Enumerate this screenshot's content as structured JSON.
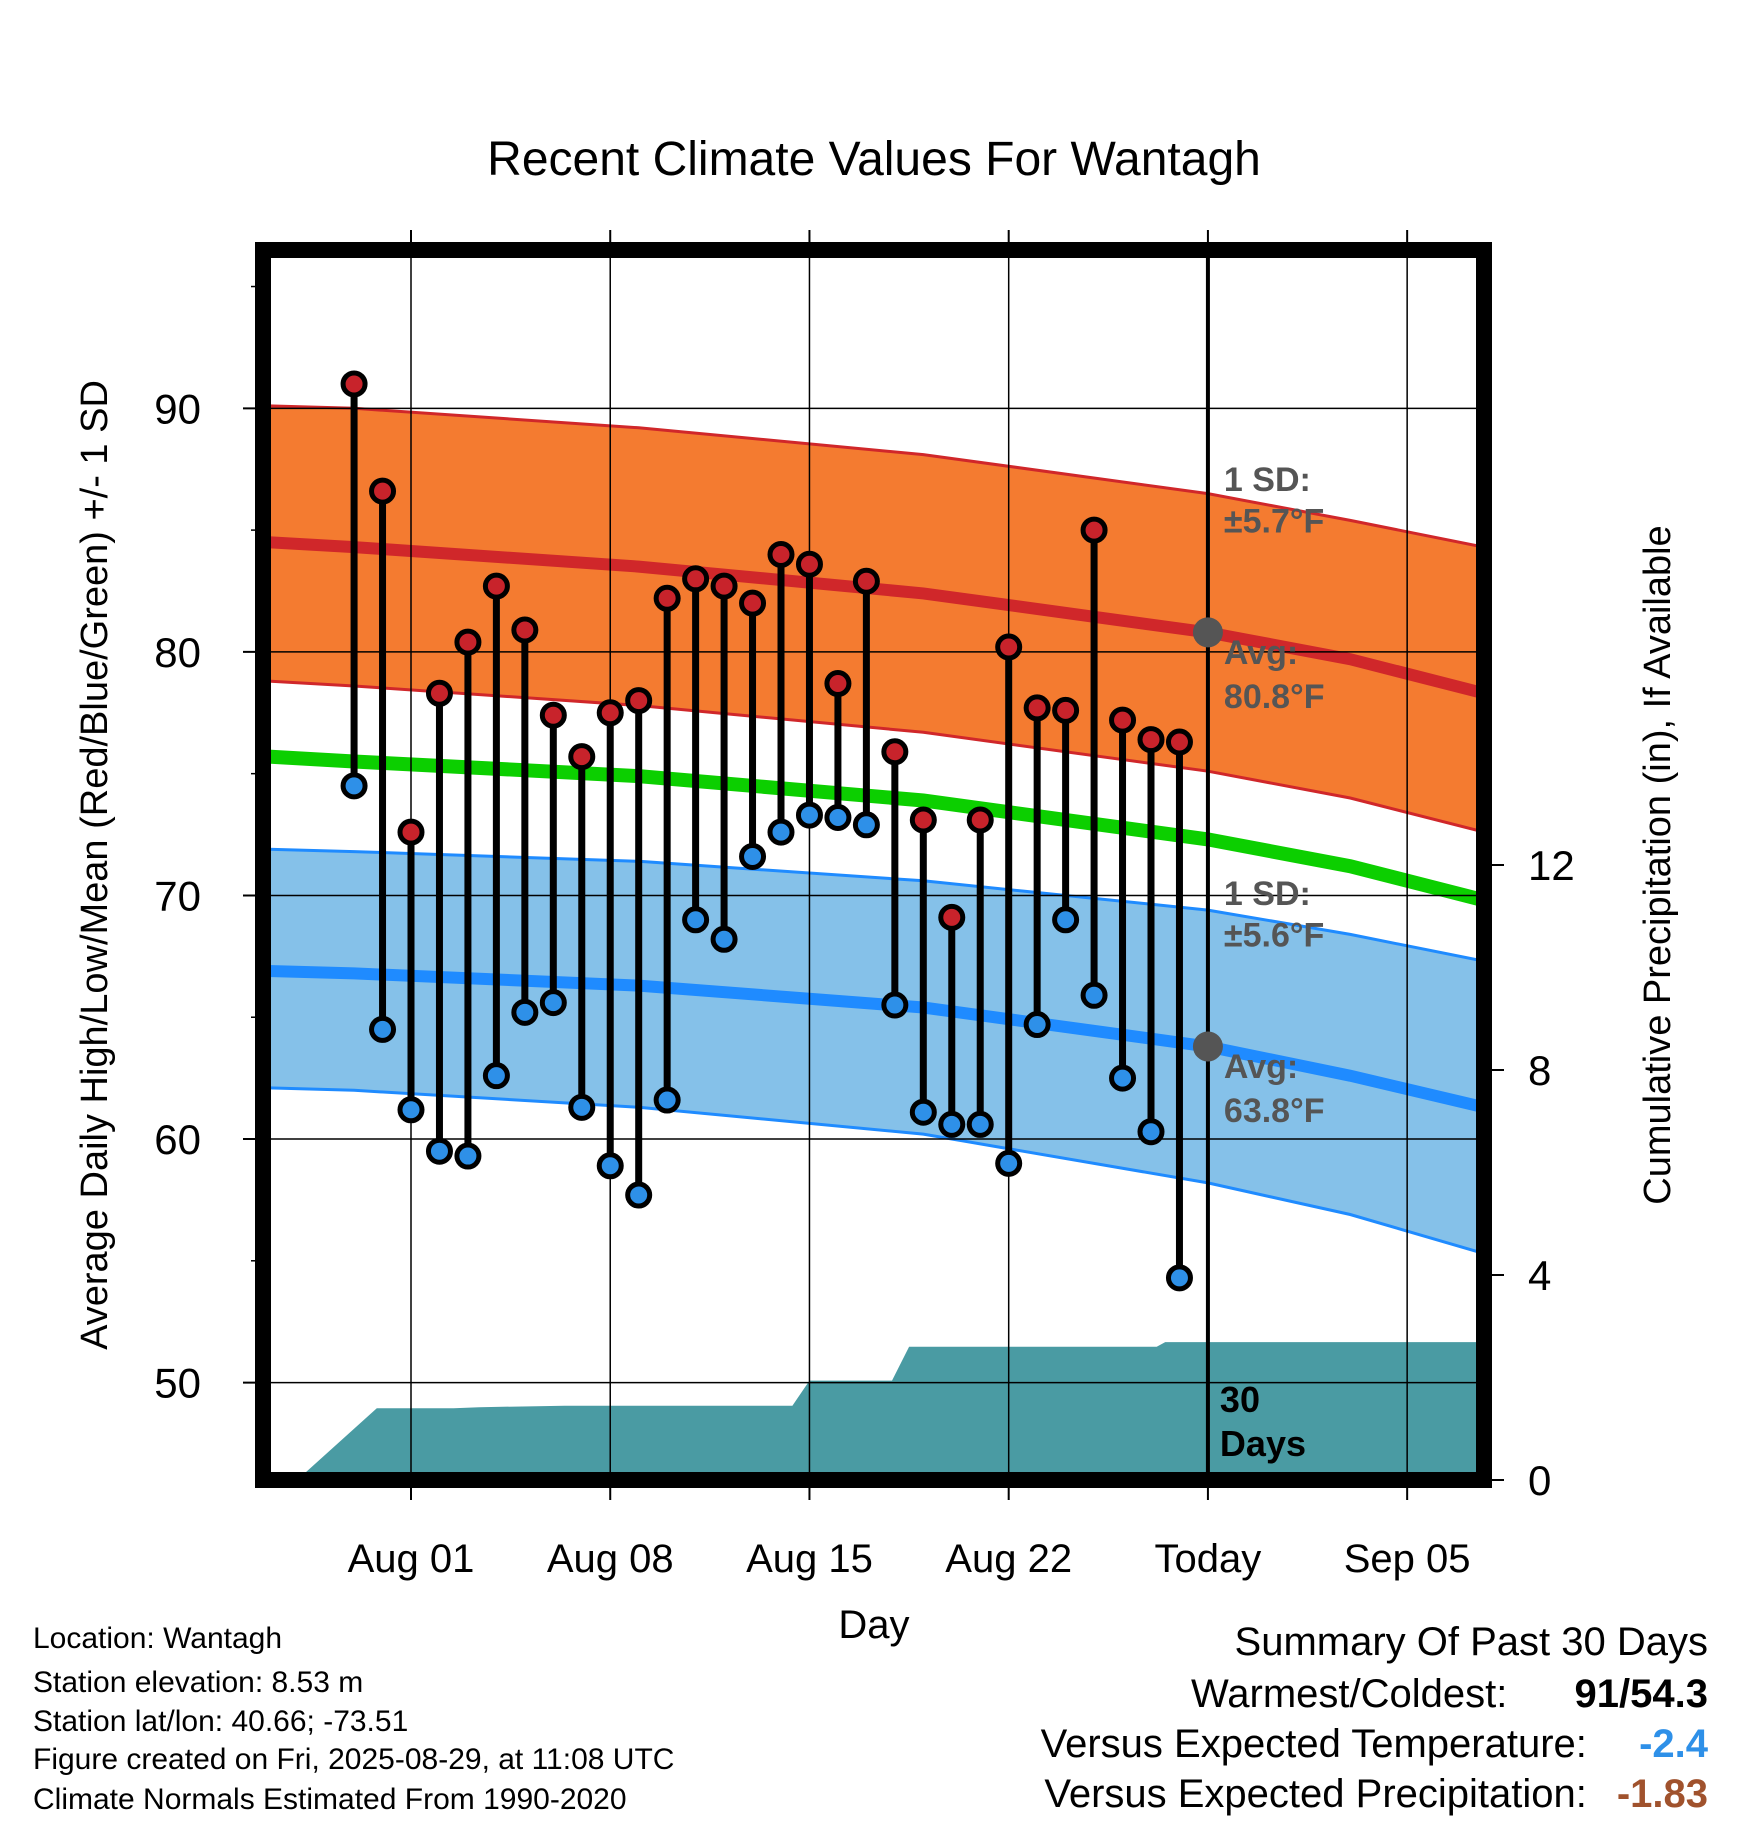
{
  "chart_data": {
    "type": "line",
    "title": "Recent Climate Values For Wantagh",
    "xlabel": "Day",
    "ylabel": "Average Daily High/Low/Mean (Red/Blue/Green) +/- 1 SD",
    "y2label": "Cumulative Precipitation (in), If Available",
    "x_tick_labels": [
      "Aug 01",
      "Aug 08",
      "Aug 15",
      "Aug 22",
      "Today",
      "Sep 05"
    ],
    "y_ticks": [
      50,
      60,
      70,
      80,
      90
    ],
    "y2_ticks": [
      0,
      4,
      8,
      12
    ],
    "ylim": [
      46,
      96.5
    ],
    "y2lim": [
      0,
      24
    ],
    "xlim_days": [
      -33.2,
      9.7
    ],
    "today_marker": 0,
    "x_days": [
      -30,
      -29,
      -28,
      -27,
      -26,
      -25,
      -24,
      -23,
      -22,
      -21,
      -20,
      -19,
      -18,
      -17,
      -16,
      -15,
      -14,
      -13,
      -12,
      -11,
      -10,
      -9,
      -8,
      -7,
      -6,
      -5,
      -4,
      -3,
      -2,
      -1
    ],
    "highs": [
      91.0,
      86.6,
      72.6,
      78.3,
      80.4,
      82.7,
      80.9,
      77.4,
      75.7,
      77.5,
      78.0,
      82.2,
      83.0,
      82.7,
      82.0,
      84.0,
      83.6,
      78.7,
      82.9,
      75.9,
      73.1,
      69.1,
      73.1,
      80.2,
      77.7,
      77.6,
      85.0,
      77.2,
      76.4,
      76.3
    ],
    "lows": [
      74.5,
      64.5,
      61.2,
      59.5,
      59.3,
      62.6,
      65.2,
      65.6,
      61.3,
      58.9,
      57.7,
      61.6,
      69.0,
      68.2,
      71.6,
      72.6,
      73.3,
      73.2,
      72.9,
      65.5,
      61.1,
      60.6,
      60.6,
      59.0,
      64.7,
      69.0,
      65.9,
      62.5,
      60.3,
      54.3
    ],
    "normal_high": {
      "x": [
        -33,
        -30,
        -20,
        -10,
        0,
        5,
        9.7
      ],
      "mean": [
        84.5,
        84.3,
        83.5,
        82.4,
        80.8,
        79.7,
        78.3
      ],
      "upper": [
        90.1,
        90.0,
        89.2,
        88.1,
        86.5,
        85.4,
        84.3
      ],
      "lower": [
        78.8,
        78.6,
        77.8,
        76.7,
        75.1,
        74.0,
        72.6
      ]
    },
    "normal_mean": {
      "x": [
        -33,
        -30,
        -20,
        -10,
        0,
        5,
        9.7
      ],
      "values": [
        75.7,
        75.5,
        74.9,
        73.9,
        72.3,
        71.2,
        69.8
      ]
    },
    "normal_low": {
      "x": [
        -33,
        -30,
        -20,
        -10,
        0,
        5,
        9.7
      ],
      "mean": [
        66.9,
        66.8,
        66.3,
        65.4,
        63.8,
        62.6,
        61.3
      ],
      "upper": [
        71.9,
        71.8,
        71.4,
        70.6,
        69.4,
        68.4,
        67.3
      ],
      "lower": [
        62.1,
        62.0,
        61.3,
        60.2,
        58.2,
        56.9,
        55.3
      ]
    },
    "precip_cumulative": {
      "x": [
        -32.0,
        -29.2,
        -26.5,
        -25.6,
        -22.6,
        -14.6,
        -14.0,
        -11.1,
        -10.5,
        -5.4,
        -4.5,
        -1.8,
        -1.5,
        9.7
      ],
      "values": [
        0,
        1.4,
        1.4,
        1.42,
        1.45,
        1.45,
        1.94,
        1.94,
        2.6,
        2.6,
        2.6,
        2.6,
        2.69,
        2.69
      ]
    },
    "annotations": {
      "high_sd": "1 SD:",
      "high_sd_value": "±5.7°F",
      "high_avg": "Avg:",
      "high_avg_value": "80.8°F",
      "low_sd": "1 SD:",
      "low_sd_value": "±5.6°F",
      "low_avg": "Avg:",
      "low_avg_value": "63.8°F",
      "period_num": "30",
      "period_unit": "Days"
    },
    "colors": {
      "high_band": "#f47b30",
      "high_line": "#d0272a",
      "mean_line": "#0ccf00",
      "low_band": "#85c1e9",
      "low_line": "#1f8bff",
      "precip": "#4a9ba3",
      "high_point": "#c8232b",
      "low_point": "#2e90e8",
      "today_avg_point": "#555555",
      "annotation_text": "#555555"
    }
  },
  "info": {
    "location": "Location: Wantagh",
    "elevation": "Station elevation: 8.53 m",
    "latlon": "Station lat/lon: 40.66; -73.51",
    "created": "Figure created on Fri, 2025-08-29, at 11:08 UTC",
    "normals": "Climate Normals Estimated From 1990-2020"
  },
  "summary": {
    "heading": "Summary Of Past 30 Days",
    "warmest_label": "Warmest/Coldest:",
    "warmest_high": "91",
    "warmest_sep": "/",
    "warmest_low": "54.3",
    "temp_label": "Versus Expected Temperature:",
    "temp_value": "-2.4",
    "temp_color": "#2e90e8",
    "precip_label": "Versus Expected Precipitation:",
    "precip_value": "-1.83",
    "precip_color": "#a0522d"
  }
}
